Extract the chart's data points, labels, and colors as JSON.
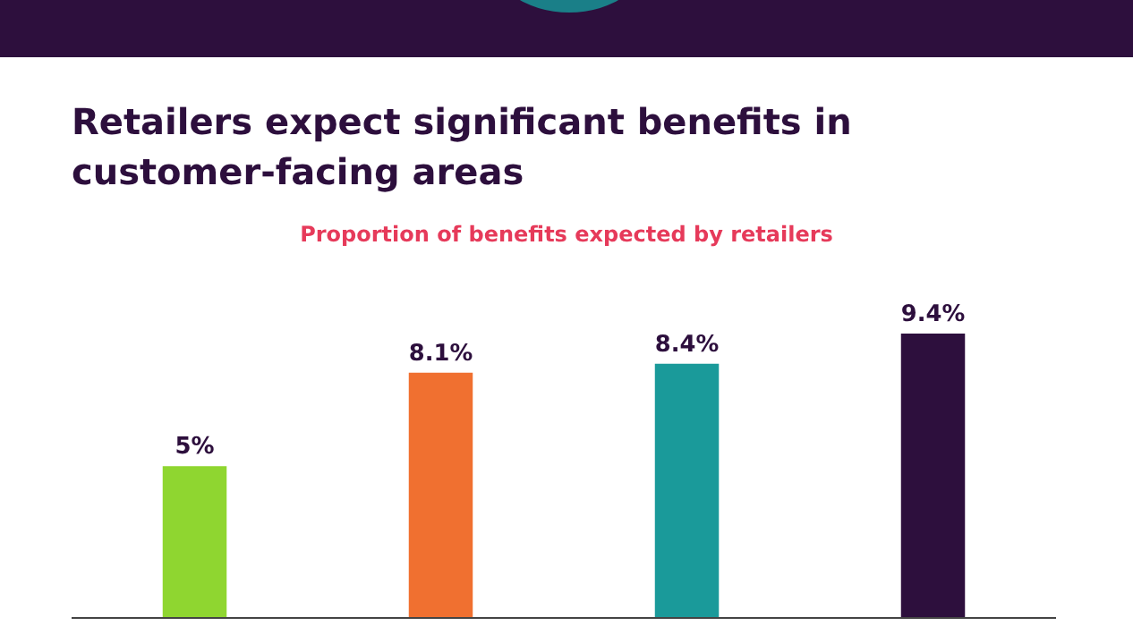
{
  "chart_data": {
    "type": "bar",
    "title": "Retailers expect significant benefits in customer-facing areas",
    "subtitle": "Proportion of benefits expected by retailers",
    "categories": [
      null,
      null,
      null,
      null
    ],
    "values": [
      5,
      8.1,
      8.4,
      9.4
    ],
    "colors": [
      "#8fd630",
      "#f07030",
      "#1a9a9a",
      "#2d0f3d"
    ],
    "value_labels": [
      "5%",
      "8.1%",
      "8.4%",
      "9.4%"
    ]
  }
}
